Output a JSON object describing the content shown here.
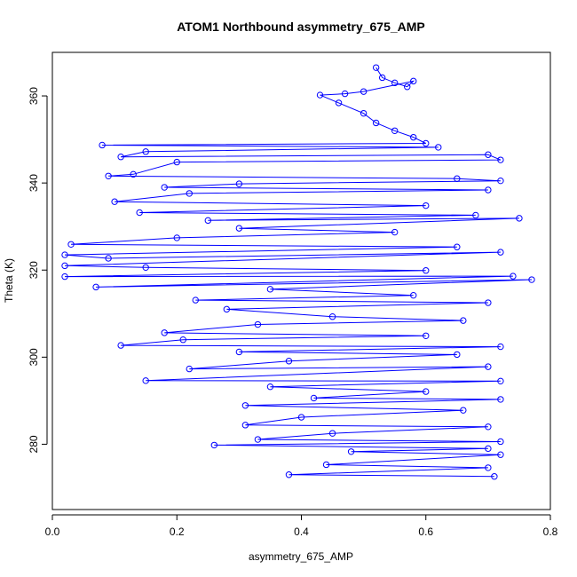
{
  "chart_data": {
    "type": "line",
    "title": "ATOM1 Northbound asymmetry_675_AMP",
    "xlabel": "asymmetry_675_AMP",
    "ylabel": "Theta (K)",
    "xlim": [
      0.0,
      0.8
    ],
    "ylim": [
      265,
      370
    ],
    "x_ticks": [
      "0.0",
      "0.2",
      "0.4",
      "0.6",
      "0.8"
    ],
    "y_ticks": [
      "280",
      "300",
      "320",
      "340",
      "360"
    ],
    "series": [
      {
        "color": "#0000ff",
        "marker": "open-circle",
        "points": [
          [
            0.52,
            366.5
          ],
          [
            0.53,
            364.2
          ],
          [
            0.55,
            363.0
          ],
          [
            0.57,
            362.1
          ],
          [
            0.58,
            363.4
          ],
          [
            0.5,
            361.0
          ],
          [
            0.47,
            360.5
          ],
          [
            0.43,
            360.2
          ],
          [
            0.46,
            358.4
          ],
          [
            0.5,
            356.0
          ],
          [
            0.52,
            353.8
          ],
          [
            0.55,
            352.0
          ],
          [
            0.58,
            350.5
          ],
          [
            0.6,
            349.1
          ],
          [
            0.08,
            348.7
          ],
          [
            0.62,
            348.2
          ],
          [
            0.15,
            347.2
          ],
          [
            0.11,
            346.0
          ],
          [
            0.7,
            346.5
          ],
          [
            0.72,
            345.3
          ],
          [
            0.2,
            344.8
          ],
          [
            0.13,
            342.0
          ],
          [
            0.09,
            341.6
          ],
          [
            0.65,
            341.0
          ],
          [
            0.72,
            340.5
          ],
          [
            0.3,
            339.8
          ],
          [
            0.18,
            339.0
          ],
          [
            0.7,
            338.4
          ],
          [
            0.22,
            337.6
          ],
          [
            0.1,
            335.7
          ],
          [
            0.6,
            334.8
          ],
          [
            0.14,
            333.2
          ],
          [
            0.68,
            332.6
          ],
          [
            0.25,
            331.4
          ],
          [
            0.75,
            331.9
          ],
          [
            0.3,
            329.6
          ],
          [
            0.55,
            328.7
          ],
          [
            0.2,
            327.4
          ],
          [
            0.03,
            325.9
          ],
          [
            0.65,
            325.3
          ],
          [
            0.02,
            323.5
          ],
          [
            0.09,
            322.7
          ],
          [
            0.72,
            324.1
          ],
          [
            0.02,
            321.0
          ],
          [
            0.15,
            320.6
          ],
          [
            0.6,
            319.9
          ],
          [
            0.02,
            318.5
          ],
          [
            0.74,
            318.6
          ],
          [
            0.07,
            316.1
          ],
          [
            0.77,
            317.8
          ],
          [
            0.35,
            315.6
          ],
          [
            0.58,
            314.2
          ],
          [
            0.23,
            313.1
          ],
          [
            0.7,
            312.5
          ],
          [
            0.28,
            311.0
          ],
          [
            0.45,
            309.3
          ],
          [
            0.66,
            308.4
          ],
          [
            0.33,
            307.5
          ],
          [
            0.18,
            305.6
          ],
          [
            0.6,
            304.9
          ],
          [
            0.21,
            304.0
          ],
          [
            0.11,
            302.7
          ],
          [
            0.72,
            302.4
          ],
          [
            0.3,
            301.2
          ],
          [
            0.65,
            300.6
          ],
          [
            0.38,
            299.1
          ],
          [
            0.22,
            297.3
          ],
          [
            0.7,
            297.8
          ],
          [
            0.15,
            294.6
          ],
          [
            0.72,
            294.5
          ],
          [
            0.35,
            293.2
          ],
          [
            0.6,
            292.1
          ],
          [
            0.42,
            290.6
          ],
          [
            0.72,
            290.3
          ],
          [
            0.31,
            288.9
          ],
          [
            0.66,
            287.8
          ],
          [
            0.4,
            286.2
          ],
          [
            0.31,
            284.4
          ],
          [
            0.7,
            284.0
          ],
          [
            0.45,
            282.5
          ],
          [
            0.33,
            281.1
          ],
          [
            0.72,
            280.6
          ],
          [
            0.26,
            279.8
          ],
          [
            0.7,
            279.0
          ],
          [
            0.48,
            278.3
          ],
          [
            0.72,
            277.6
          ],
          [
            0.44,
            275.3
          ],
          [
            0.7,
            274.6
          ],
          [
            0.38,
            273.0
          ],
          [
            0.71,
            272.6
          ]
        ]
      }
    ]
  }
}
